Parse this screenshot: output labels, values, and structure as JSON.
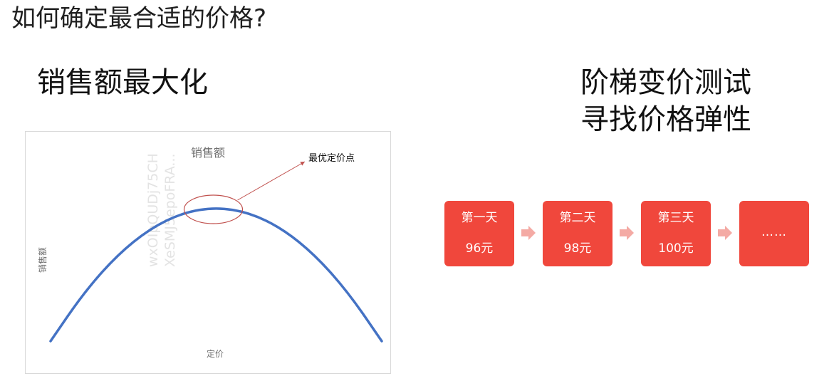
{
  "page": {
    "heading": "如何确定最合适的价格?"
  },
  "left_section": {
    "title": "销售额最大化",
    "chart": {
      "watermark_lines": [
        "wxOIpQUDj75CH",
        "XeSMJ5epoFRA..."
      ]
    }
  },
  "right_section": {
    "title_lines": [
      "阶梯变价测试",
      "寻找价格弹性"
    ],
    "steps": [
      {
        "day": "第一天",
        "price": "96元"
      },
      {
        "day": "第二天",
        "price": "98元"
      },
      {
        "day": "第三天",
        "price": "100元"
      },
      {
        "ellipsis": "……"
      }
    ],
    "step_color": "#f0473c",
    "arrow_color": "#f4aaa4"
  },
  "chart_data": {
    "type": "line",
    "title": "销售额",
    "xlabel": "定价",
    "ylabel": "销售额",
    "curve": "inverted parabola",
    "series": [
      {
        "x": [
          0,
          0.1,
          0.2,
          0.3,
          0.4,
          0.5,
          0.6,
          0.7,
          0.8,
          0.9,
          1.0
        ],
        "values": [
          0.0,
          0.36,
          0.64,
          0.84,
          0.96,
          1.0,
          0.96,
          0.84,
          0.64,
          0.36,
          0.0
        ],
        "color": "#4472c4"
      }
    ],
    "annotation": {
      "text": "最优定价点",
      "target_x": 0.5,
      "highlight": "ellipse around peak",
      "color": "#c0504d"
    },
    "axes_visible": false,
    "grid": false
  }
}
